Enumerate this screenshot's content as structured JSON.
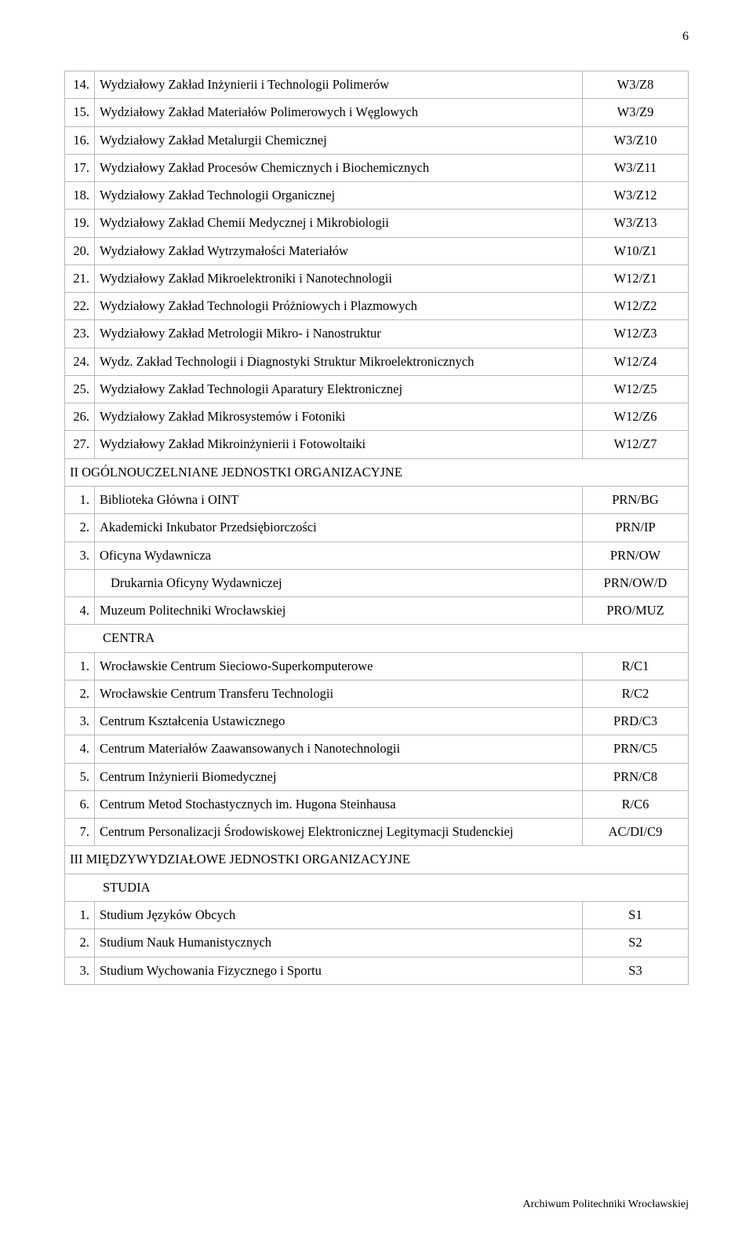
{
  "page_number": "6",
  "footer": "Archiwum Politechniki Wrocławskiej",
  "colors": {
    "text": "#000000",
    "border": "#b8b8b8",
    "background": "#ffffff"
  },
  "typography": {
    "body_font": "Times New Roman",
    "body_size_pt": 12,
    "footer_size_pt": 10
  },
  "rows": [
    {
      "type": "item",
      "num": "14.",
      "name": "Wydziałowy Zakład Inżynierii i Technologii Polimerów",
      "code": "W3/Z8"
    },
    {
      "type": "item",
      "num": "15.",
      "name": "Wydziałowy Zakład Materiałów Polimerowych i Węglowych",
      "code": "W3/Z9"
    },
    {
      "type": "item",
      "num": "16.",
      "name": "Wydziałowy Zakład Metalurgii Chemicznej",
      "code": "W3/Z10"
    },
    {
      "type": "item",
      "num": "17.",
      "name": "Wydziałowy Zakład Procesów Chemicznych i Biochemicznych",
      "code": "W3/Z11"
    },
    {
      "type": "item",
      "num": "18.",
      "name": "Wydziałowy Zakład Technologii Organicznej",
      "code": "W3/Z12"
    },
    {
      "type": "item",
      "num": "19.",
      "name": "Wydziałowy Zakład Chemii Medycznej i Mikrobiologii",
      "code": "W3/Z13"
    },
    {
      "type": "item",
      "num": "20.",
      "name": "Wydziałowy Zakład Wytrzymałości Materiałów",
      "code": "W10/Z1"
    },
    {
      "type": "item",
      "num": "21.",
      "name": "Wydziałowy Zakład Mikroelektroniki i Nanotechnologii",
      "code": "W12/Z1"
    },
    {
      "type": "item",
      "num": "22.",
      "name": "Wydziałowy Zakład Technologii Próżniowych i Plazmowych",
      "code": "W12/Z2"
    },
    {
      "type": "item",
      "num": "23.",
      "name": "Wydziałowy Zakład Metrologii Mikro- i Nanostruktur",
      "code": "W12/Z3"
    },
    {
      "type": "item",
      "num": "24.",
      "name": "Wydz. Zakład Technologii i Diagnostyki Struktur Mikroelektronicznych",
      "code": "W12/Z4"
    },
    {
      "type": "item",
      "num": "25.",
      "name": "Wydziałowy Zakład Technologii Aparatury Elektronicznej",
      "code": "W12/Z5"
    },
    {
      "type": "item",
      "num": "26.",
      "name": "Wydziałowy Zakład Mikrosystemów i Fotoniki",
      "code": "W12/Z6"
    },
    {
      "type": "item",
      "num": "27.",
      "name": "Wydziałowy Zakład Mikroinżynierii i Fotowoltaiki",
      "code": "W12/Z7"
    },
    {
      "type": "section",
      "label": "II OGÓLNOUCZELNIANE JEDNOSTKI ORGANIZACYJNE",
      "indent": false
    },
    {
      "type": "item",
      "num": "1.",
      "name": "Biblioteka Główna i OINT",
      "code": "PRN/BG"
    },
    {
      "type": "item",
      "num": "2.",
      "name": "Akademicki Inkubator Przedsiębiorczości",
      "code": "PRN/IP"
    },
    {
      "type": "item",
      "num": "3.",
      "name": "Oficyna Wydawnicza",
      "code": "PRN/OW"
    },
    {
      "type": "item",
      "num": "",
      "name": "Drukarnia Oficyny Wydawniczej",
      "name_indent": true,
      "code": "PRN/OW/D"
    },
    {
      "type": "item",
      "num": "4.",
      "name": "Muzeum Politechniki Wrocławskiej",
      "code": "PRO/MUZ"
    },
    {
      "type": "section",
      "label": "CENTRA",
      "indent": true
    },
    {
      "type": "item",
      "num": "1.",
      "name": "Wrocławskie Centrum Sieciowo-Superkomputerowe",
      "code": "R/C1"
    },
    {
      "type": "item",
      "num": "2.",
      "name": "Wrocławskie Centrum Transferu Technologii",
      "code": "R/C2"
    },
    {
      "type": "item",
      "num": "3.",
      "name": "Centrum Kształcenia Ustawicznego",
      "code": "PRD/C3"
    },
    {
      "type": "item",
      "num": "4.",
      "name": "Centrum Materiałów Zaawansowanych i Nanotechnologii",
      "code": "PRN/C5"
    },
    {
      "type": "item",
      "num": "5.",
      "name": "Centrum Inżynierii Biomedycznej",
      "code": "PRN/C8"
    },
    {
      "type": "item",
      "num": "6.",
      "name": "Centrum Metod Stochastycznych im. Hugona Steinhausa",
      "code": "R/C6"
    },
    {
      "type": "item",
      "num": "7.",
      "name": "Centrum Personalizacji Środowiskowej Elektronicznej Legitymacji Studenckiej",
      "code": "AC/DI/C9"
    },
    {
      "type": "section",
      "label": "III MIĘDZYWYDZIAŁOWE JEDNOSTKI ORGANIZACYJNE",
      "indent": false
    },
    {
      "type": "section",
      "label": "STUDIA",
      "indent": true
    },
    {
      "type": "item",
      "num": "1.",
      "name": "Studium Języków Obcych",
      "code": "S1"
    },
    {
      "type": "item",
      "num": "2.",
      "name": "Studium Nauk Humanistycznych",
      "code": "S2"
    },
    {
      "type": "item",
      "num": "3.",
      "name": "Studium Wychowania Fizycznego i Sportu",
      "code": "S3"
    }
  ]
}
